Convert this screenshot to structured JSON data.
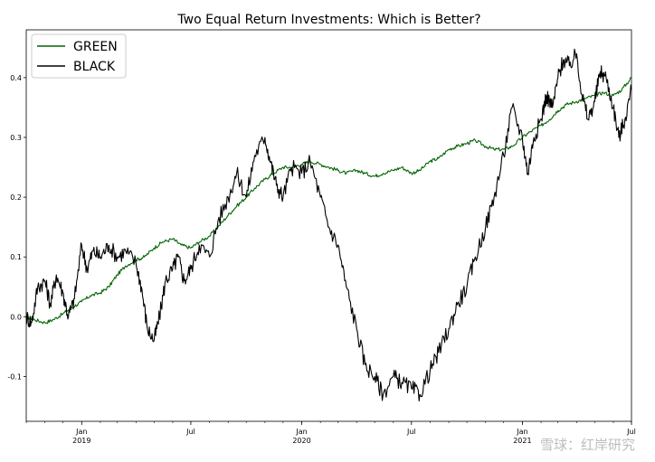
{
  "chart_data": {
    "type": "line",
    "title": "Two Equal Return Investments: Which is Better?",
    "xlabel": "",
    "ylabel": "",
    "xlim": [
      "2018-10-01",
      "2021-07-01"
    ],
    "ylim": [
      -0.175,
      0.48
    ],
    "y_ticks": [
      -0.1,
      0.0,
      0.1,
      0.2,
      0.3,
      0.4
    ],
    "y_tick_labels": [
      "-0.1",
      "0.0",
      "0.1",
      "0.2",
      "0.3",
      "0.4"
    ],
    "x_ticks": [
      {
        "date": "2019-01-01",
        "label": "Jan",
        "year": "2019"
      },
      {
        "date": "2019-07-01",
        "label": "Jul",
        "year": ""
      },
      {
        "date": "2020-01-01",
        "label": "Jan",
        "year": "2020"
      },
      {
        "date": "2020-07-01",
        "label": "Jul",
        "year": ""
      },
      {
        "date": "2021-01-01",
        "label": "Jan",
        "year": "2021"
      },
      {
        "date": "2021-07-01",
        "label": "Jul",
        "year": ""
      }
    ],
    "grid": false,
    "legend_position": "top-left",
    "series": [
      {
        "name": "GREEN",
        "color": "#006400",
        "x": [
          "2018-10-01",
          "2018-10-15",
          "2018-11-01",
          "2018-11-15",
          "2018-12-01",
          "2018-12-15",
          "2019-01-01",
          "2019-01-15",
          "2019-02-01",
          "2019-02-15",
          "2019-03-01",
          "2019-03-15",
          "2019-04-01",
          "2019-04-15",
          "2019-05-01",
          "2019-05-15",
          "2019-06-01",
          "2019-06-15",
          "2019-07-01",
          "2019-07-15",
          "2019-08-01",
          "2019-08-15",
          "2019-09-01",
          "2019-09-15",
          "2019-10-01",
          "2019-10-15",
          "2019-11-01",
          "2019-11-15",
          "2019-12-01",
          "2019-12-15",
          "2020-01-01",
          "2020-01-15",
          "2020-02-01",
          "2020-02-15",
          "2020-03-01",
          "2020-03-15",
          "2020-04-01",
          "2020-04-15",
          "2020-05-01",
          "2020-05-15",
          "2020-06-01",
          "2020-06-15",
          "2020-07-01",
          "2020-07-15",
          "2020-08-01",
          "2020-08-15",
          "2020-09-01",
          "2020-09-15",
          "2020-10-01",
          "2020-10-15",
          "2020-11-01",
          "2020-11-15",
          "2020-12-01",
          "2020-12-15",
          "2021-01-01",
          "2021-01-15",
          "2021-02-01",
          "2021-02-15",
          "2021-03-01",
          "2021-03-15",
          "2021-04-01",
          "2021-04-15",
          "2021-05-01",
          "2021-05-15",
          "2021-06-01",
          "2021-06-15",
          "2021-07-01"
        ],
        "values": [
          0.0,
          -0.005,
          -0.01,
          -0.005,
          0.005,
          0.015,
          0.025,
          0.035,
          0.04,
          0.05,
          0.07,
          0.085,
          0.095,
          0.1,
          0.115,
          0.125,
          0.13,
          0.12,
          0.115,
          0.125,
          0.135,
          0.15,
          0.17,
          0.185,
          0.2,
          0.215,
          0.23,
          0.24,
          0.25,
          0.25,
          0.255,
          0.26,
          0.255,
          0.25,
          0.245,
          0.24,
          0.245,
          0.24,
          0.235,
          0.24,
          0.245,
          0.25,
          0.24,
          0.245,
          0.26,
          0.265,
          0.28,
          0.285,
          0.29,
          0.295,
          0.285,
          0.28,
          0.28,
          0.285,
          0.3,
          0.31,
          0.32,
          0.33,
          0.345,
          0.355,
          0.36,
          0.365,
          0.37,
          0.375,
          0.37,
          0.38,
          0.4
        ]
      },
      {
        "name": "BLACK",
        "color": "#000000",
        "x": [
          "2018-10-01",
          "2018-10-10",
          "2018-10-20",
          "2018-11-01",
          "2018-11-10",
          "2018-11-20",
          "2018-12-01",
          "2018-12-10",
          "2018-12-20",
          "2019-01-01",
          "2019-01-10",
          "2019-01-20",
          "2019-02-01",
          "2019-02-15",
          "2019-03-01",
          "2019-03-15",
          "2019-04-01",
          "2019-04-10",
          "2019-04-20",
          "2019-05-01",
          "2019-05-10",
          "2019-05-20",
          "2019-06-01",
          "2019-06-10",
          "2019-06-20",
          "2019-07-01",
          "2019-07-15",
          "2019-08-01",
          "2019-08-15",
          "2019-09-01",
          "2019-09-15",
          "2019-10-01",
          "2019-10-15",
          "2019-11-01",
          "2019-11-10",
          "2019-11-20",
          "2019-12-01",
          "2019-12-15",
          "2020-01-01",
          "2020-01-15",
          "2020-02-01",
          "2020-02-15",
          "2020-03-01",
          "2020-03-15",
          "2020-04-01",
          "2020-04-15",
          "2020-05-01",
          "2020-05-15",
          "2020-06-01",
          "2020-06-15",
          "2020-07-01",
          "2020-07-15",
          "2020-08-01",
          "2020-08-15",
          "2020-09-01",
          "2020-09-15",
          "2020-10-01",
          "2020-10-15",
          "2020-11-01",
          "2020-11-15",
          "2020-12-01",
          "2020-12-15",
          "2021-01-01",
          "2021-01-10",
          "2021-01-20",
          "2021-02-01",
          "2021-02-10",
          "2021-02-20",
          "2021-03-01",
          "2021-03-10",
          "2021-03-20",
          "2021-04-01",
          "2021-04-10",
          "2021-04-20",
          "2021-05-01",
          "2021-05-10",
          "2021-05-20",
          "2021-06-01",
          "2021-06-10",
          "2021-06-20",
          "2021-07-01"
        ],
        "values": [
          0.0,
          -0.01,
          0.05,
          0.06,
          0.02,
          0.07,
          0.04,
          0.0,
          0.03,
          0.12,
          0.08,
          0.11,
          0.1,
          0.12,
          0.1,
          0.11,
          0.09,
          0.05,
          -0.02,
          -0.04,
          0.0,
          0.06,
          0.08,
          0.1,
          0.06,
          0.08,
          0.12,
          0.1,
          0.16,
          0.2,
          0.24,
          0.2,
          0.27,
          0.3,
          0.26,
          0.22,
          0.2,
          0.25,
          0.24,
          0.26,
          0.2,
          0.15,
          0.12,
          0.05,
          -0.02,
          -0.08,
          -0.1,
          -0.13,
          -0.1,
          -0.11,
          -0.12,
          -0.13,
          -0.09,
          -0.06,
          -0.02,
          0.02,
          0.05,
          0.1,
          0.15,
          0.2,
          0.27,
          0.35,
          0.3,
          0.24,
          0.3,
          0.33,
          0.37,
          0.35,
          0.4,
          0.43,
          0.42,
          0.44,
          0.37,
          0.33,
          0.36,
          0.41,
          0.4,
          0.35,
          0.3,
          0.33,
          0.38
        ]
      }
    ],
    "watermark": "雪球：红岸研究"
  }
}
